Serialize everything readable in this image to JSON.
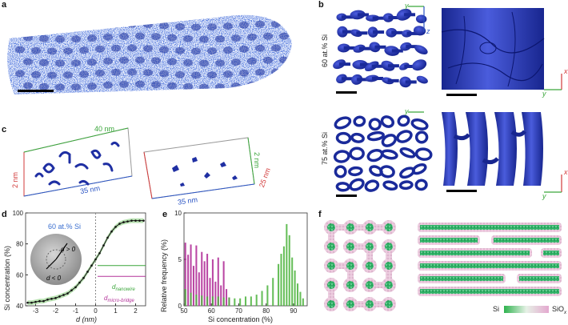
{
  "panels": {
    "a": {
      "label": "a"
    },
    "b": {
      "label": "b",
      "row1": "60 at.% Si",
      "row2": "75 at.% Si",
      "axis_y": "y",
      "axis_z": "z",
      "axis_x": "x"
    },
    "c": {
      "label": "c",
      "dim_40": "40 nm",
      "dim_35a": "35 nm",
      "dim_2a": "2 nm",
      "dim_2b": "2 nm",
      "dim_35b": "35 nm",
      "dim_25": "25 nm"
    },
    "d": {
      "label": "d",
      "annotation": "60 at.% Si",
      "d_pos": "d > 0",
      "d_neg": "d < 0",
      "d_nanowire": "d",
      "d_nanowire_sub": "nanowire",
      "d_bridge": "d",
      "d_bridge_sub": "micro-bridge"
    },
    "e": {
      "label": "e"
    },
    "f": {
      "label": "f",
      "legend_si": "Si",
      "legend_siox": "SiO",
      "legend_siox_sub": "x"
    }
  },
  "chart_data": [
    {
      "id": "d",
      "type": "line",
      "xlabel": "d (nm)",
      "ylabel": "Si concentration (%)",
      "xlim": [
        -3.5,
        2.5
      ],
      "ylim": [
        40,
        100
      ],
      "xticks": [
        "-3",
        "-2",
        "-1",
        "0",
        "1",
        "2"
      ],
      "yticks": [
        "40",
        "60",
        "80",
        "100"
      ],
      "series": [
        {
          "name": "60 at.% Si",
          "x": [
            -3.4,
            -3.2,
            -3.0,
            -2.8,
            -2.6,
            -2.4,
            -2.2,
            -2.0,
            -1.8,
            -1.6,
            -1.4,
            -1.2,
            -1.0,
            -0.8,
            -0.6,
            -0.4,
            -0.2,
            0.0,
            0.2,
            0.4,
            0.6,
            0.8,
            1.0,
            1.2,
            1.4,
            1.6,
            1.8,
            2.0,
            2.2,
            2.4
          ],
          "y": [
            42,
            42,
            42.5,
            43,
            43,
            44,
            44.5,
            45,
            46,
            47,
            48,
            50,
            52,
            55,
            58,
            62,
            66,
            70,
            74,
            79,
            84,
            88,
            91,
            93,
            94,
            94.5,
            95,
            95,
            95,
            95
          ]
        }
      ],
      "hlines": [
        {
          "name": "nanowire",
          "y": 66
        },
        {
          "name": "micro-bridge",
          "y": 59
        }
      ]
    },
    {
      "id": "e",
      "type": "bar",
      "xlabel": "Si concentration (%)",
      "ylabel": "Relative frequency (%)",
      "xlim": [
        50,
        95
      ],
      "ylim": [
        0,
        10
      ],
      "xticks": [
        "50",
        "60",
        "70",
        "80",
        "90"
      ],
      "yticks": [
        "0",
        "5",
        "10"
      ],
      "series": [
        {
          "name": "60 at.% Si",
          "color": "#b3339a",
          "x": [
            50.5,
            51.5,
            52.5,
            53.5,
            54.5,
            55.5,
            56.5,
            57.5,
            58.5,
            59.5,
            60.5,
            61.5,
            62.5,
            63.5,
            64.5,
            65.5,
            66.5
          ],
          "values": [
            6.8,
            5.5,
            6.6,
            4.3,
            6.5,
            3.6,
            5.8,
            4.8,
            5.6,
            3.0,
            5.0,
            2.6,
            5.2,
            2.2,
            4.8,
            1.8,
            0.9
          ]
        },
        {
          "name": "75 at.% Si",
          "color": "#4bb33c",
          "x": [
            50.5,
            52.5,
            54.5,
            56.5,
            58.5,
            60.5,
            62.5,
            64.5,
            66.5,
            68.5,
            70.5,
            72.5,
            74.5,
            76.5,
            78.5,
            80.5,
            82.5,
            84.5,
            85.5,
            86.5,
            87.5,
            88.5,
            89.5,
            90.5,
            91.5,
            92.5,
            93.5
          ],
          "values": [
            1.8,
            1.4,
            1.2,
            1.1,
            1.0,
            1.0,
            1.0,
            0.9,
            0.9,
            0.8,
            0.8,
            1.0,
            1.0,
            1.2,
            1.6,
            2.2,
            3.0,
            4.5,
            5.6,
            6.4,
            8.8,
            7.6,
            5.2,
            3.8,
            2.4,
            1.5,
            0.8
          ]
        }
      ]
    }
  ]
}
